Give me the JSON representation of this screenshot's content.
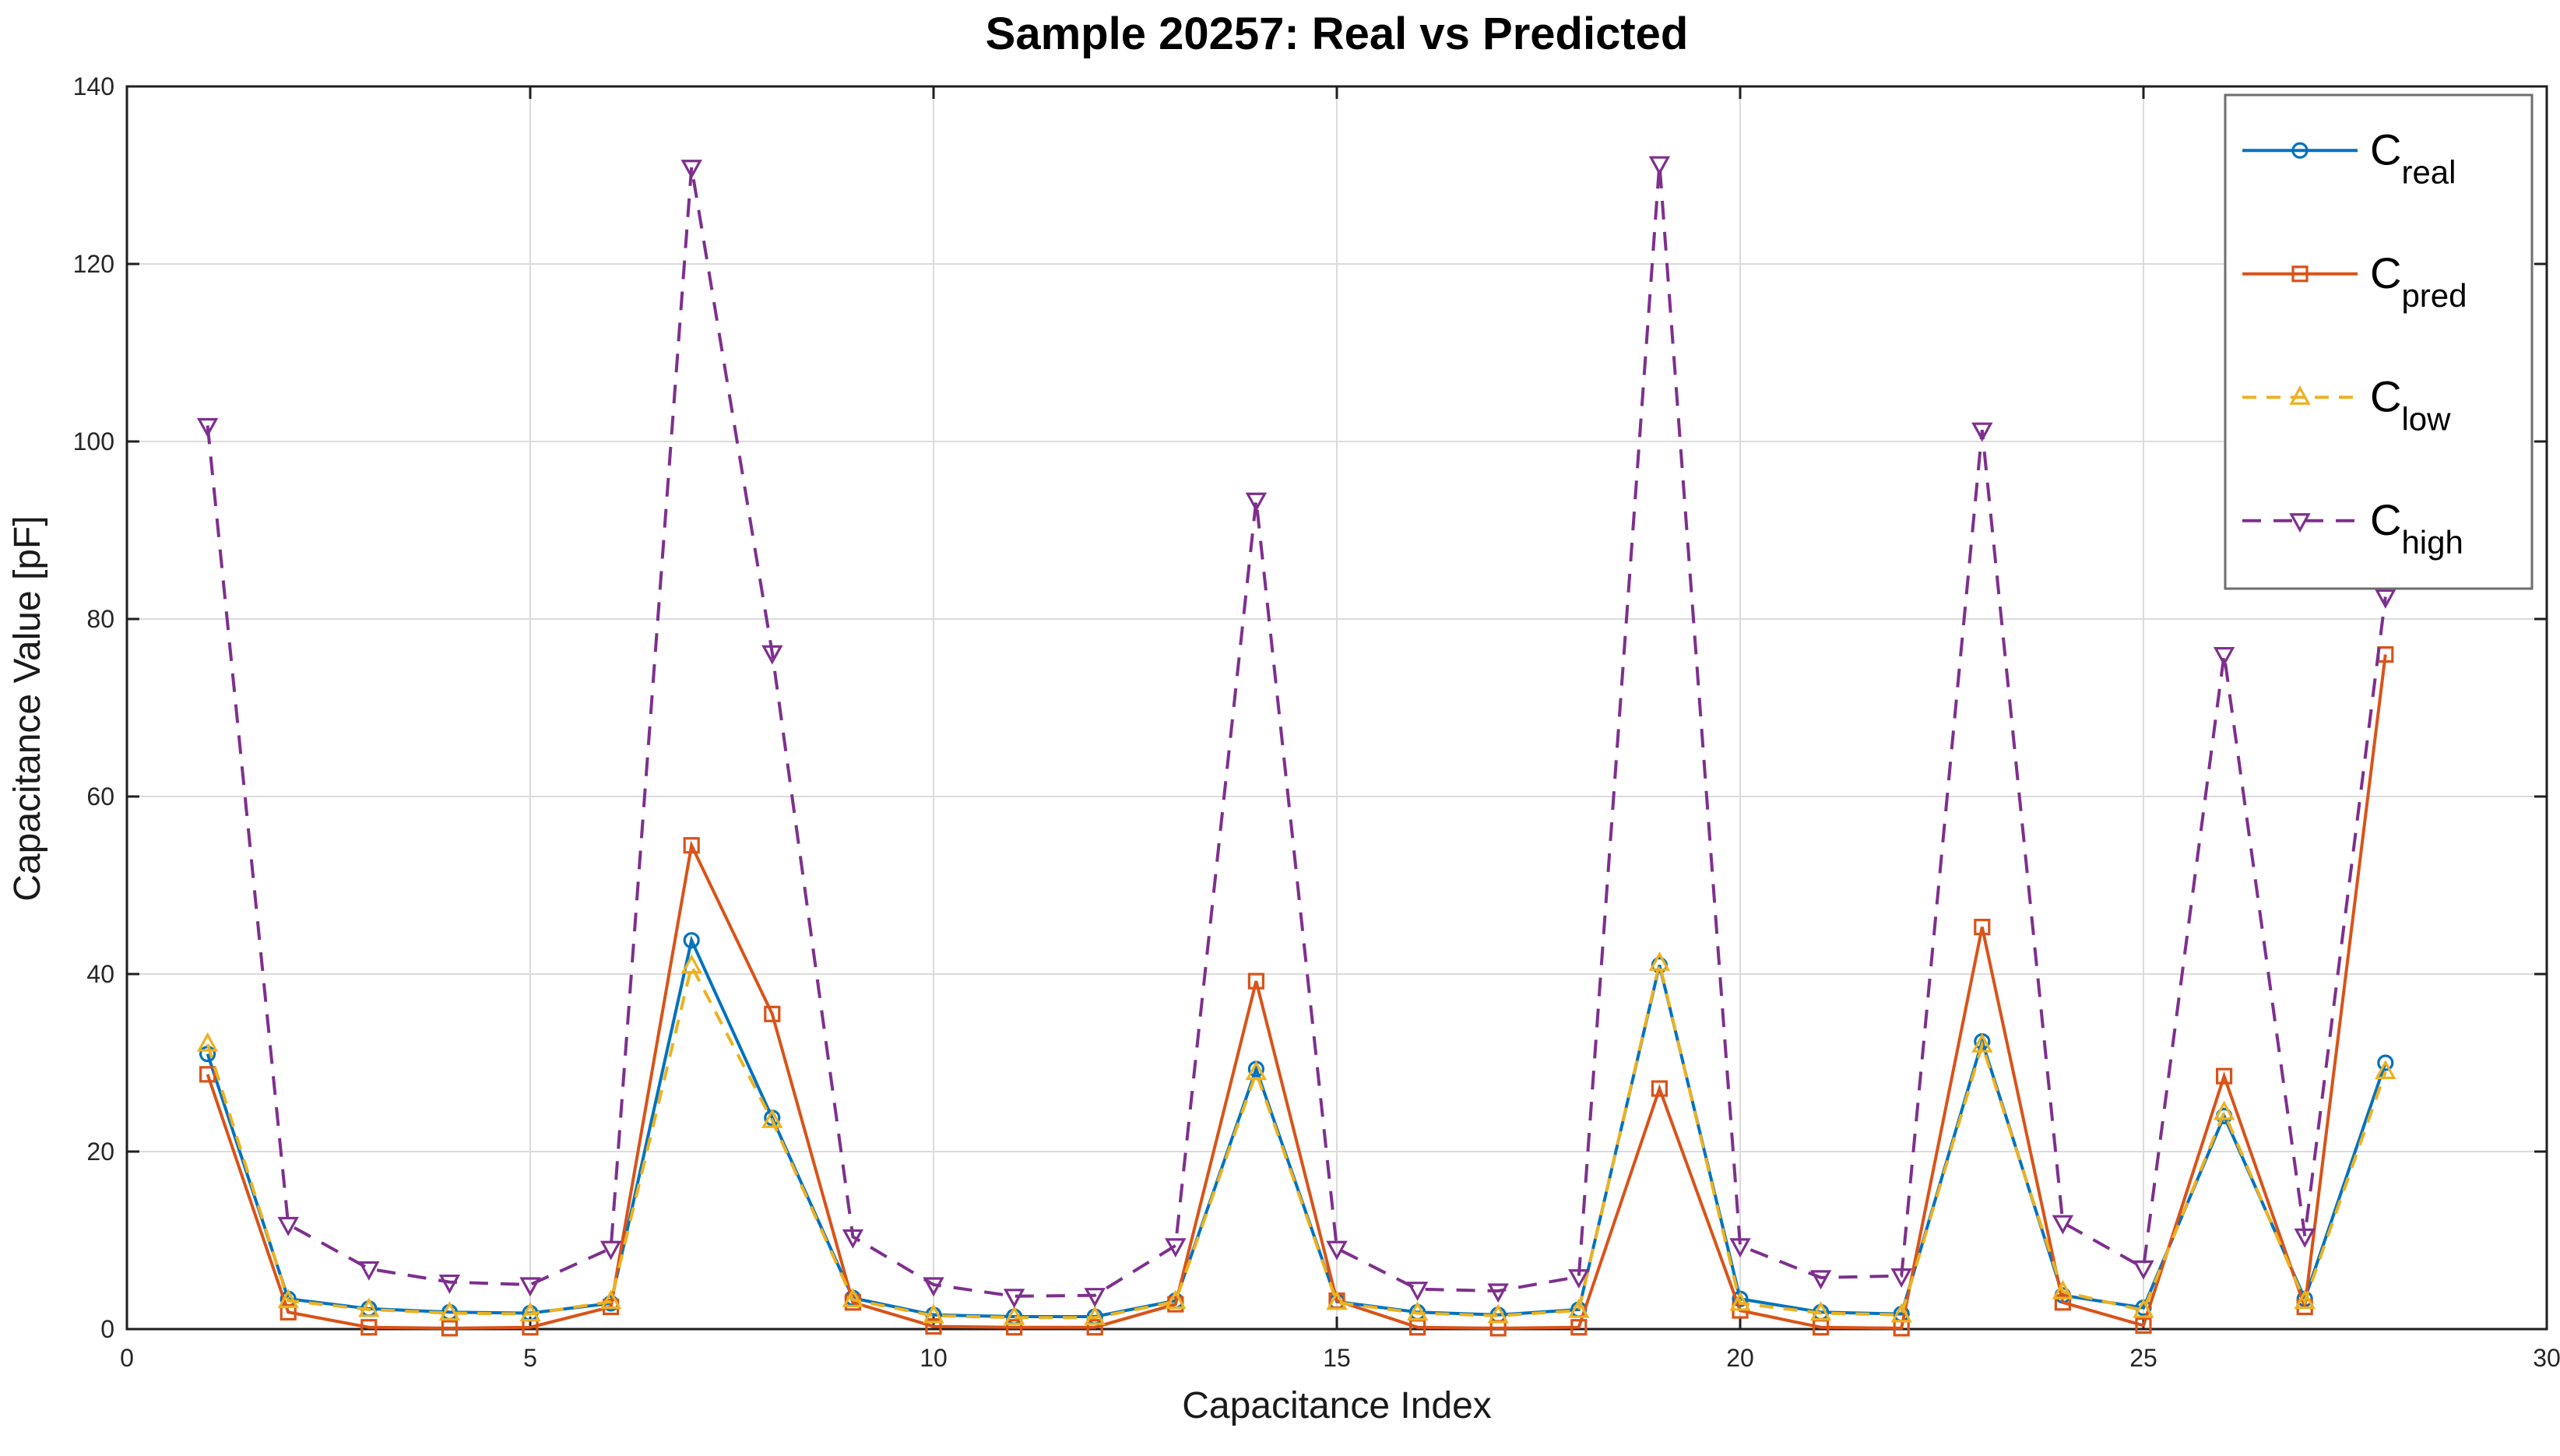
{
  "figure": {
    "title": "Sample 20257: Real vs Predicted",
    "xlabel": "Capacitance Index",
    "ylabel": "Capacitance Value [pF]"
  },
  "chart_data": {
    "type": "line",
    "title": "Sample 20257: Real vs Predicted",
    "xlabel": "Capacitance Index",
    "ylabel": "Capacitance Value [pF]",
    "xlim": [
      0,
      30
    ],
    "ylim": [
      0,
      140
    ],
    "xticks": [
      0,
      5,
      10,
      15,
      20,
      25,
      30
    ],
    "yticks": [
      0,
      20,
      40,
      60,
      80,
      100,
      120,
      140
    ],
    "grid": true,
    "legend_position": "top-right",
    "x": [
      1,
      2,
      3,
      4,
      5,
      6,
      7,
      8,
      9,
      10,
      11,
      12,
      13,
      14,
      15,
      16,
      17,
      18,
      19,
      20,
      21,
      22,
      23,
      24,
      25,
      26,
      27,
      28
    ],
    "series": [
      {
        "name": "C_real",
        "label_main": "C",
        "label_sub": "real",
        "color": "#0072BD",
        "line_style": "solid",
        "marker": "circle",
        "values": [
          31.0,
          3.4,
          2.3,
          1.9,
          1.8,
          2.9,
          43.8,
          23.8,
          3.5,
          1.6,
          1.4,
          1.4,
          3.2,
          29.3,
          3.1,
          1.9,
          1.6,
          2.2,
          41.0,
          3.4,
          1.9,
          1.7,
          32.4,
          3.8,
          2.4,
          24.0,
          3.4,
          30.0
        ]
      },
      {
        "name": "C_pred",
        "label_main": "C",
        "label_sub": "pred",
        "color": "#D95319",
        "line_style": "solid",
        "marker": "square",
        "values": [
          28.7,
          1.9,
          0.2,
          0.1,
          0.2,
          2.5,
          54.5,
          35.5,
          3.0,
          0.3,
          0.2,
          0.2,
          2.8,
          39.2,
          3.2,
          0.2,
          0.1,
          0.2,
          27.1,
          2.1,
          0.2,
          0.1,
          45.3,
          3.0,
          0.4,
          28.5,
          2.5,
          76.0
        ]
      },
      {
        "name": "C_low",
        "label_main": "C",
        "label_sub": "low",
        "color": "#EDB120",
        "line_style": "dashed",
        "marker": "triangle-up",
        "values": [
          32.1,
          3.2,
          2.2,
          1.8,
          1.7,
          3.1,
          40.9,
          23.5,
          3.3,
          1.5,
          1.3,
          1.3,
          3.1,
          28.9,
          3.0,
          1.8,
          1.5,
          2.1,
          41.2,
          2.9,
          1.8,
          1.6,
          32.0,
          4.2,
          2.1,
          24.4,
          3.1,
          29.0
        ]
      },
      {
        "name": "C_high",
        "label_main": "C",
        "label_sub": "high",
        "color": "#7E2F8E",
        "line_style": "dashed",
        "marker": "triangle-down",
        "values": [
          101.8,
          11.8,
          6.8,
          5.3,
          5.0,
          9.1,
          130.9,
          76.2,
          10.4,
          5.0,
          3.7,
          3.8,
          9.4,
          93.4,
          9.1,
          4.5,
          4.3,
          5.9,
          131.3,
          9.4,
          5.8,
          6.0,
          101.3,
          12.0,
          6.9,
          76.0,
          10.5,
          82.5
        ]
      }
    ],
    "style": {
      "grid_color": "#dbdbdb",
      "axis_color": "#1f1f1f",
      "tick_label_color": "#262626",
      "background": "#ffffff",
      "legend_border_color": "#6e6e6e"
    }
  }
}
